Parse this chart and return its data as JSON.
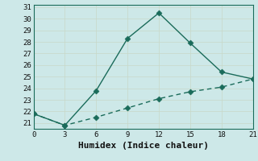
{
  "line1_x": [
    0,
    3,
    6,
    9,
    12,
    15,
    18,
    21
  ],
  "line1_y": [
    21.8,
    20.8,
    23.8,
    28.3,
    30.5,
    27.9,
    25.4,
    24.8
  ],
  "line2_x": [
    0,
    3,
    6,
    9,
    12,
    15,
    18,
    21
  ],
  "line2_y": [
    21.8,
    20.8,
    21.5,
    22.3,
    23.1,
    23.7,
    24.1,
    24.8
  ],
  "line_color": "#1a6b5a",
  "bg_color": "#cde8e8",
  "grid_color": "#b8d8d8",
  "xlabel": "Humidex (Indice chaleur)",
  "xlim": [
    0,
    21
  ],
  "ylim": [
    20.5,
    31.2
  ],
  "xticks": [
    0,
    3,
    6,
    9,
    12,
    15,
    18,
    21
  ],
  "yticks": [
    21,
    22,
    23,
    24,
    25,
    26,
    27,
    28,
    29,
    30,
    31
  ],
  "marker": "D",
  "markersize": 3.5,
  "linewidth": 1.0,
  "xlabel_fontsize": 8,
  "tick_fontsize": 6.5,
  "font_family": "monospace"
}
